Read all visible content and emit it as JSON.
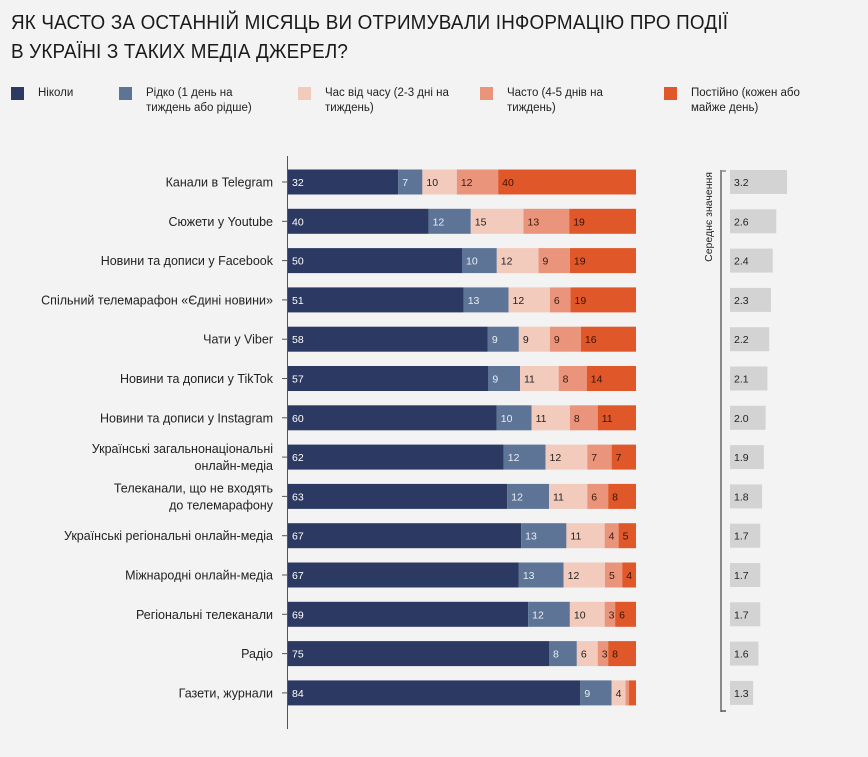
{
  "title_lines": [
    "ЯК ЧАСТО ЗА ОСТАННІЙ МІСЯЦЬ ВИ ОТРИМУВАЛИ ІНФОРМАЦІЮ ПРО ПОДІЇ",
    "В УКРАЇНІ З ТАКИХ МЕДІА ДЖЕРЕЛ?"
  ],
  "legend": [
    {
      "label": "Ніколи",
      "color": "#2c3a63"
    },
    {
      "label": "Рідко (1 день на тиждень або рідше)",
      "color": "#5d7497"
    },
    {
      "label": "Час від часу (2-3 дні на тиждень)",
      "color": "#f2cbbd"
    },
    {
      "label": "Часто (4-5 днів на тиждень)",
      "color": "#ea957b"
    },
    {
      "label": "Постійно (кожен або майже день)",
      "color": "#e0582a"
    }
  ],
  "chart_data": [
    {
      "type": "bar",
      "orientation": "horizontal-stacked-100",
      "title": "ЯК ЧАСТО ЗА ОСТАННІЙ МІСЯЦЬ ВИ ОТРИМУВАЛИ ІНФОРМАЦІЮ ПРО ПОДІЇ В УКРАЇНІ З ТАКИХ МЕДІА ДЖЕРЕЛ?",
      "xlabel": "",
      "ylabel": "",
      "xlim": [
        0,
        100
      ],
      "unit": "%",
      "legend_position": "top",
      "categories": [
        "Канали в Telegram",
        "Сюжети у Youtube",
        "Новини та дописи у Facebook",
        "Спільний телемарафон «Єдині новини»",
        "Чати у Viber",
        "Новини та дописи у TikTok",
        "Новини та дописи у Instagram",
        "Українські загальнонаціональні\nонлайн-медіа",
        "Телеканали, що не входять\nдо телемарафону",
        "Українські регіональні онлайн-медіа",
        "Міжнародні онлайн-медіа",
        "Регіональні телеканали",
        "Радіо",
        "Газети, журнали"
      ],
      "series": [
        {
          "name": "Ніколи",
          "color": "#2c3a63",
          "values": [
            32,
            40,
            50,
            51,
            58,
            57,
            60,
            62,
            63,
            67,
            67,
            69,
            75,
            84
          ]
        },
        {
          "name": "Рідко (1 день на тиждень або рідше)",
          "color": "#5d7497",
          "values": [
            7,
            12,
            10,
            13,
            9,
            9,
            10,
            12,
            12,
            13,
            13,
            12,
            8,
            9
          ]
        },
        {
          "name": "Час від часу (2-3 дні на тиждень)",
          "color": "#f2cbbd",
          "values": [
            10,
            15,
            12,
            12,
            9,
            11,
            11,
            12,
            11,
            11,
            12,
            10,
            6,
            4
          ]
        },
        {
          "name": "Часто (4-5 днів на тиждень)",
          "color": "#ea957b",
          "values": [
            12,
            13,
            9,
            6,
            9,
            8,
            8,
            7,
            6,
            4,
            5,
            3,
            3,
            1
          ]
        },
        {
          "name": "Постійно (кожен або майже день)",
          "color": "#e0582a",
          "values": [
            40,
            19,
            19,
            19,
            16,
            14,
            11,
            7,
            8,
            5,
            4,
            6,
            8,
            2
          ]
        }
      ],
      "hidden_labels": [
        [
          13,
          3
        ],
        [
          13,
          4
        ]
      ],
      "label_colors": [
        "#ffffff",
        "#e8edf5",
        "#222222",
        "#3a1a10",
        "#3a1208"
      ]
    },
    {
      "type": "bar",
      "orientation": "horizontal",
      "title": "Середнє значення",
      "categories_ref": "same as stacked chart",
      "values": [
        3.2,
        2.6,
        2.4,
        2.3,
        2.2,
        2.1,
        2.0,
        1.9,
        1.8,
        1.7,
        1.7,
        1.7,
        1.6,
        1.3
      ],
      "value_labels": [
        "3.2",
        "2.6",
        "2.4",
        "2.3",
        "2.2",
        "2.1",
        "2.0",
        "1.9",
        "1.8",
        "1.7",
        "1.7",
        "1.7",
        "1.6",
        "1.3"
      ],
      "color": "#d3d3d3",
      "xlim": [
        0,
        3.2
      ]
    }
  ]
}
